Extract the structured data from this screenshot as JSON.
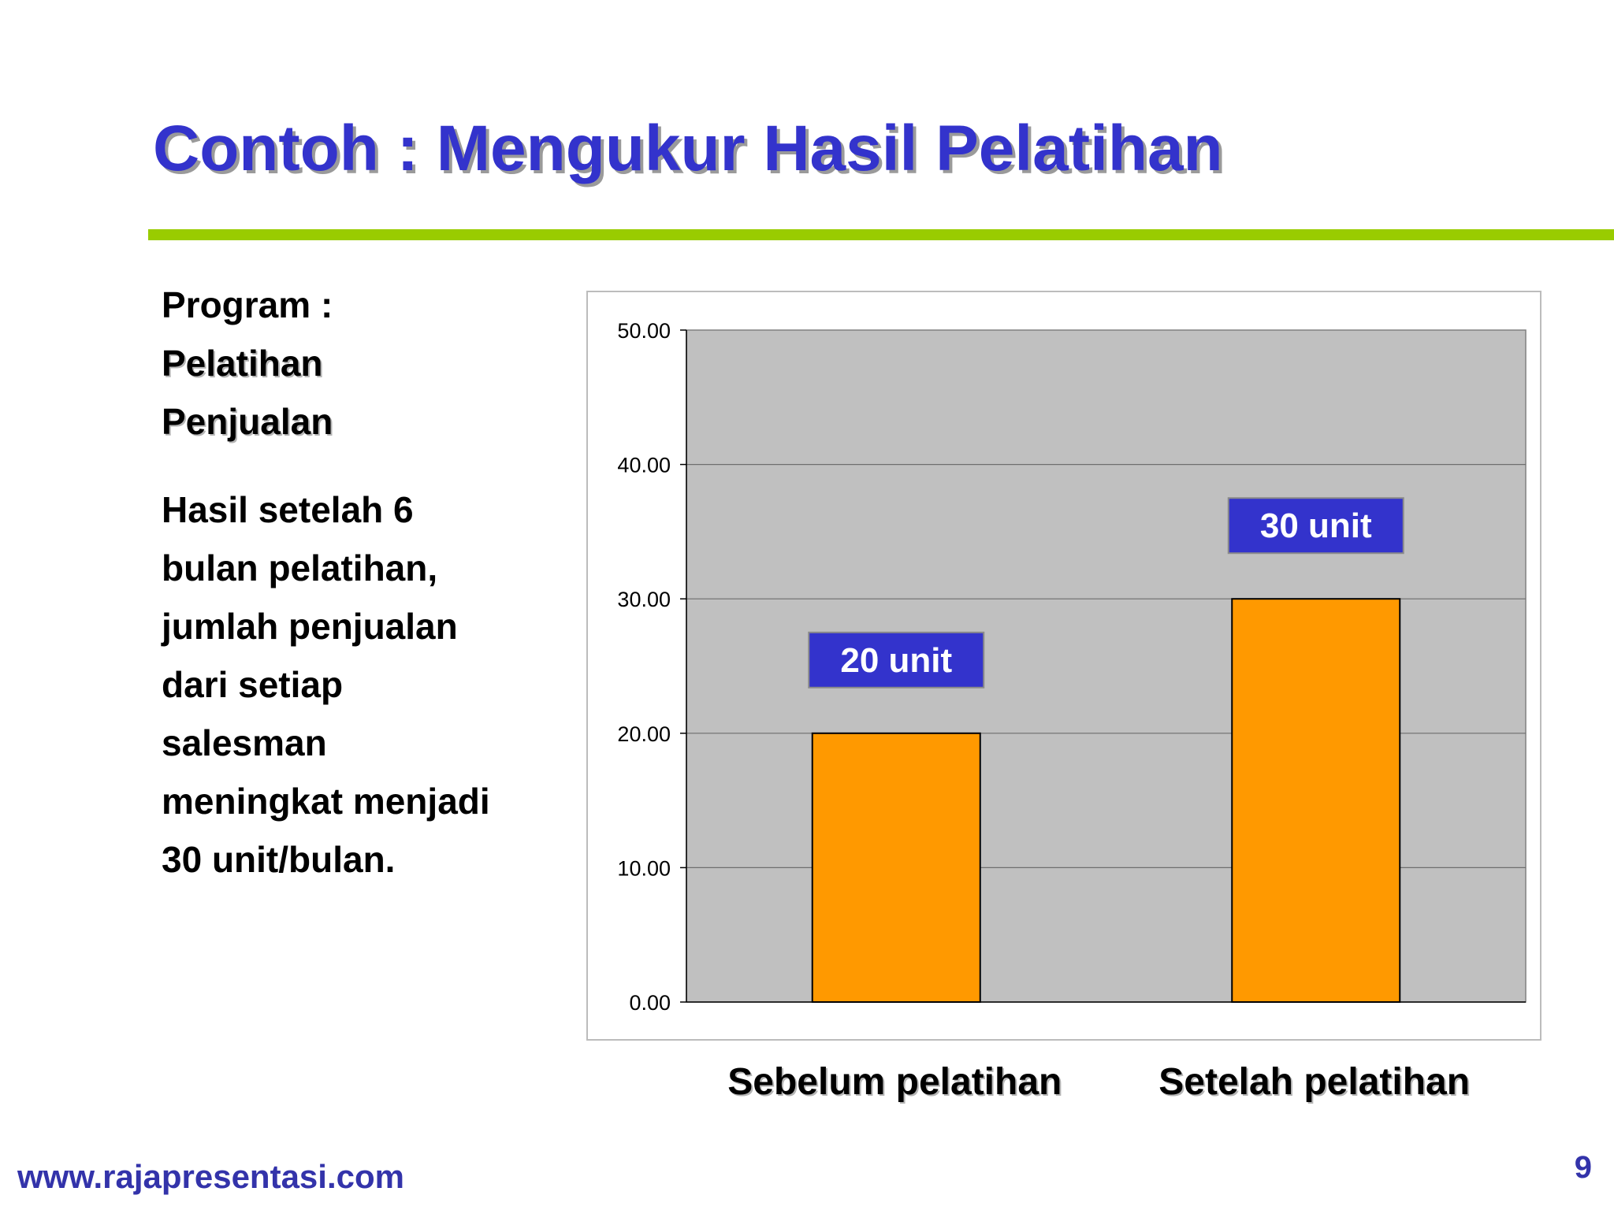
{
  "slide": {
    "title": "Contoh : Mengukur Hasil Pelatihan",
    "page_number": "9",
    "footer_url": "www.rajapresentasi.com"
  },
  "left_text": {
    "program_label": "Program :",
    "program_name_lines": [
      "Pelatihan",
      "Penjualan"
    ],
    "result_lines": [
      "Hasil setelah 6",
      "bulan pelatihan,",
      "jumlah penjualan",
      "dari setiap",
      "salesman",
      "meningkat menjadi",
      "30 unit/bulan."
    ]
  },
  "colors": {
    "title": "#3333cc",
    "divider": "#99cc00",
    "plot_bg": "#c0c0c0",
    "bar": "#ff9900",
    "label_box": "#3333cc",
    "label_text": "#ffffff"
  },
  "chart_data": {
    "type": "bar",
    "categories": [
      "Sebelum pelatihan",
      "Setelah pelatihan"
    ],
    "values": [
      20,
      30
    ],
    "data_labels": [
      "20 unit",
      "30 unit"
    ],
    "ylim": [
      0,
      50
    ],
    "yticks": [
      0,
      10,
      20,
      30,
      40,
      50
    ],
    "ytick_labels": [
      "0.00",
      "10.00",
      "20.00",
      "30.00",
      "40.00",
      "50.00"
    ],
    "grid": true,
    "legend": "none",
    "title": "",
    "xlabel": "",
    "ylabel": ""
  }
}
